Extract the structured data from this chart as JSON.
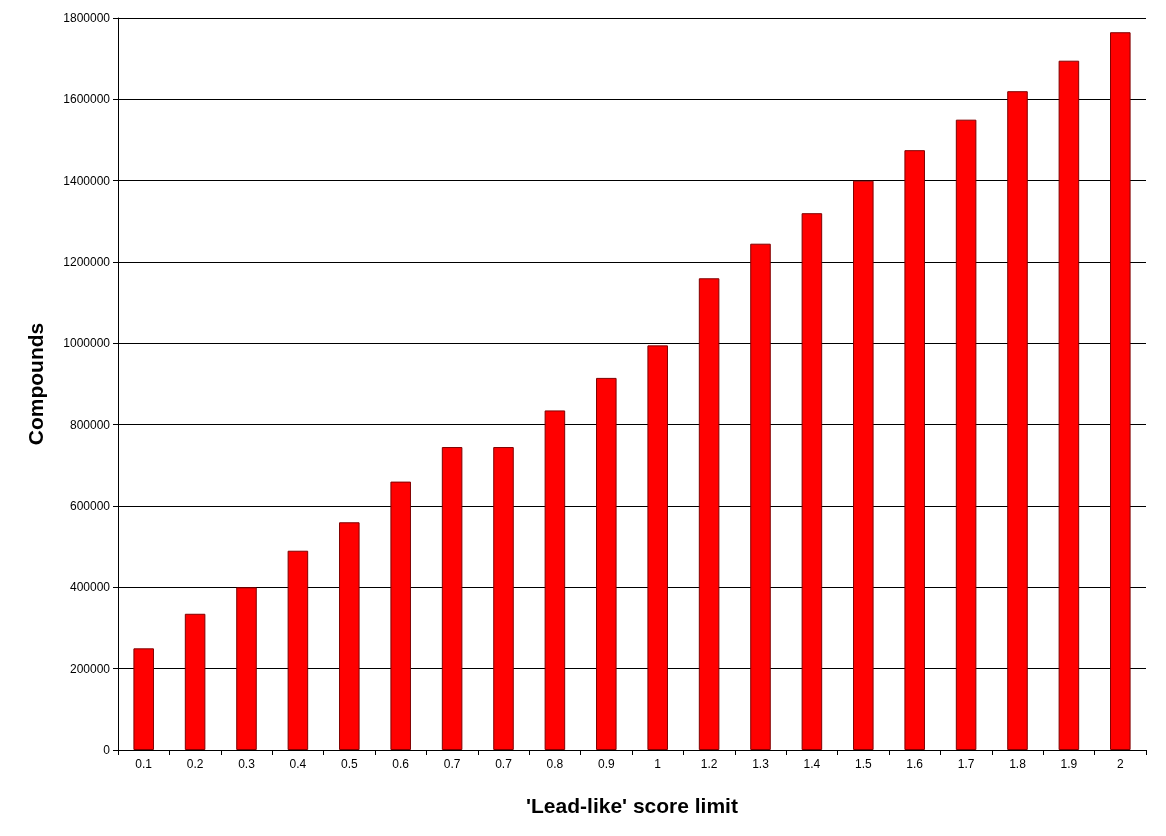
{
  "chart_data": {
    "type": "bar",
    "xlabel": "'Lead-like' score limit",
    "ylabel": "Compounds",
    "categories": [
      "0.1",
      "0.2",
      "0.3",
      "0.4",
      "0.5",
      "0.6",
      "0.7",
      "0.7",
      "0.8",
      "0.9",
      "1",
      "1.2",
      "1.3",
      "1.4",
      "1.5",
      "1.6",
      "1.7",
      "1.8",
      "1.9",
      "2"
    ],
    "values": [
      250000,
      335000,
      400000,
      490000,
      560000,
      660000,
      745000,
      745000,
      835000,
      915000,
      995000,
      1160000,
      1245000,
      1320000,
      1400000,
      1475000,
      1550000,
      1620000,
      1695000,
      1765000
    ],
    "color": "#ff0000",
    "ylim": [
      0,
      1800000
    ],
    "yticks": [
      0,
      200000,
      400000,
      600000,
      800000,
      1000000,
      1200000,
      1400000,
      1600000,
      1800000
    ],
    "grid": "y"
  }
}
